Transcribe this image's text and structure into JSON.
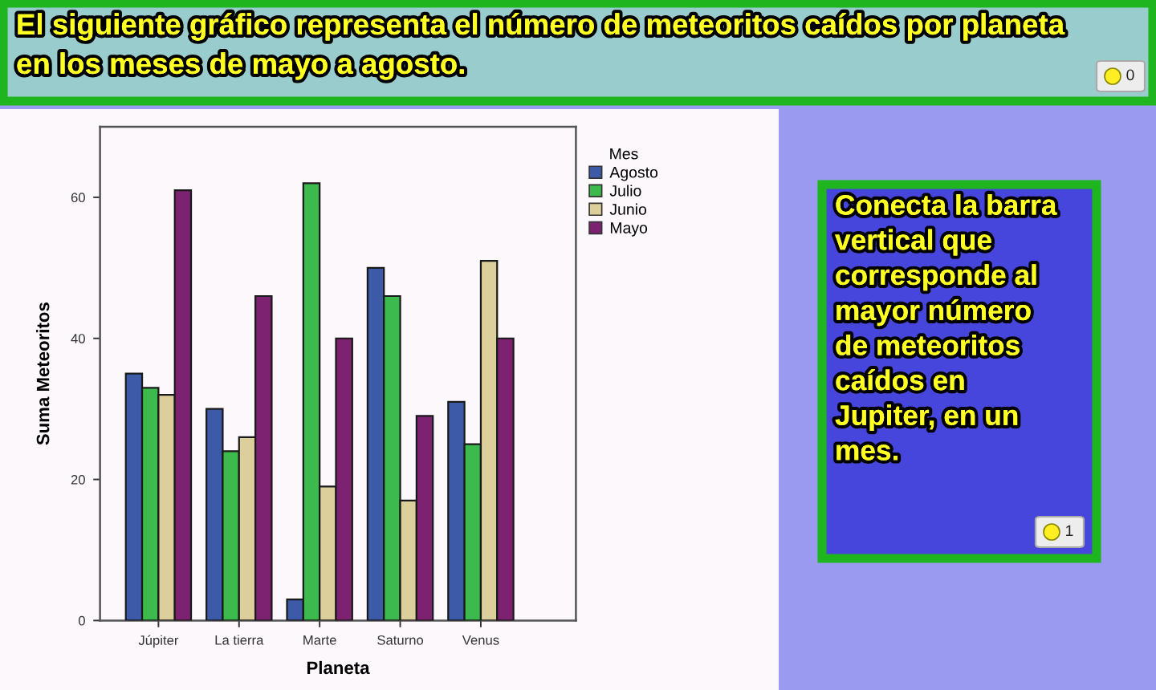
{
  "chart_data": [
    {
      "type": "bar",
      "title": "El siguiente gráfico representa el número de meteoritos caídos por planeta en los meses de mayo a agosto.",
      "xlabel": "Planeta",
      "ylabel": "Suma Meteoritos",
      "legend_title": "Mes",
      "categories": [
        "Júpiter",
        "La tierra",
        "Marte",
        "Saturno",
        "Venus"
      ],
      "series": [
        {
          "name": "Agosto",
          "color": "#3c5aa8",
          "values": [
            35,
            30,
            3,
            50,
            31
          ]
        },
        {
          "name": "Julio",
          "color": "#3dba4e",
          "values": [
            33,
            24,
            62,
            46,
            25
          ]
        },
        {
          "name": "Junio",
          "color": "#dccf9c",
          "values": [
            32,
            26,
            19,
            17,
            51
          ]
        },
        {
          "name": "Mayo",
          "color": "#7d2270",
          "values": [
            61,
            46,
            40,
            29,
            40
          ]
        }
      ],
      "ylim": [
        0,
        70
      ],
      "yticks": [
        0,
        20,
        40,
        60
      ],
      "legend": "right",
      "annotations": [
        "0"
      ]
    },
    {
      "type": "other",
      "annotations": [
        "Conecta la barra vertical que corresponde al mayor número de meteoritos caídos en Jupiter, en un mes.",
        "1"
      ]
    }
  ]
}
